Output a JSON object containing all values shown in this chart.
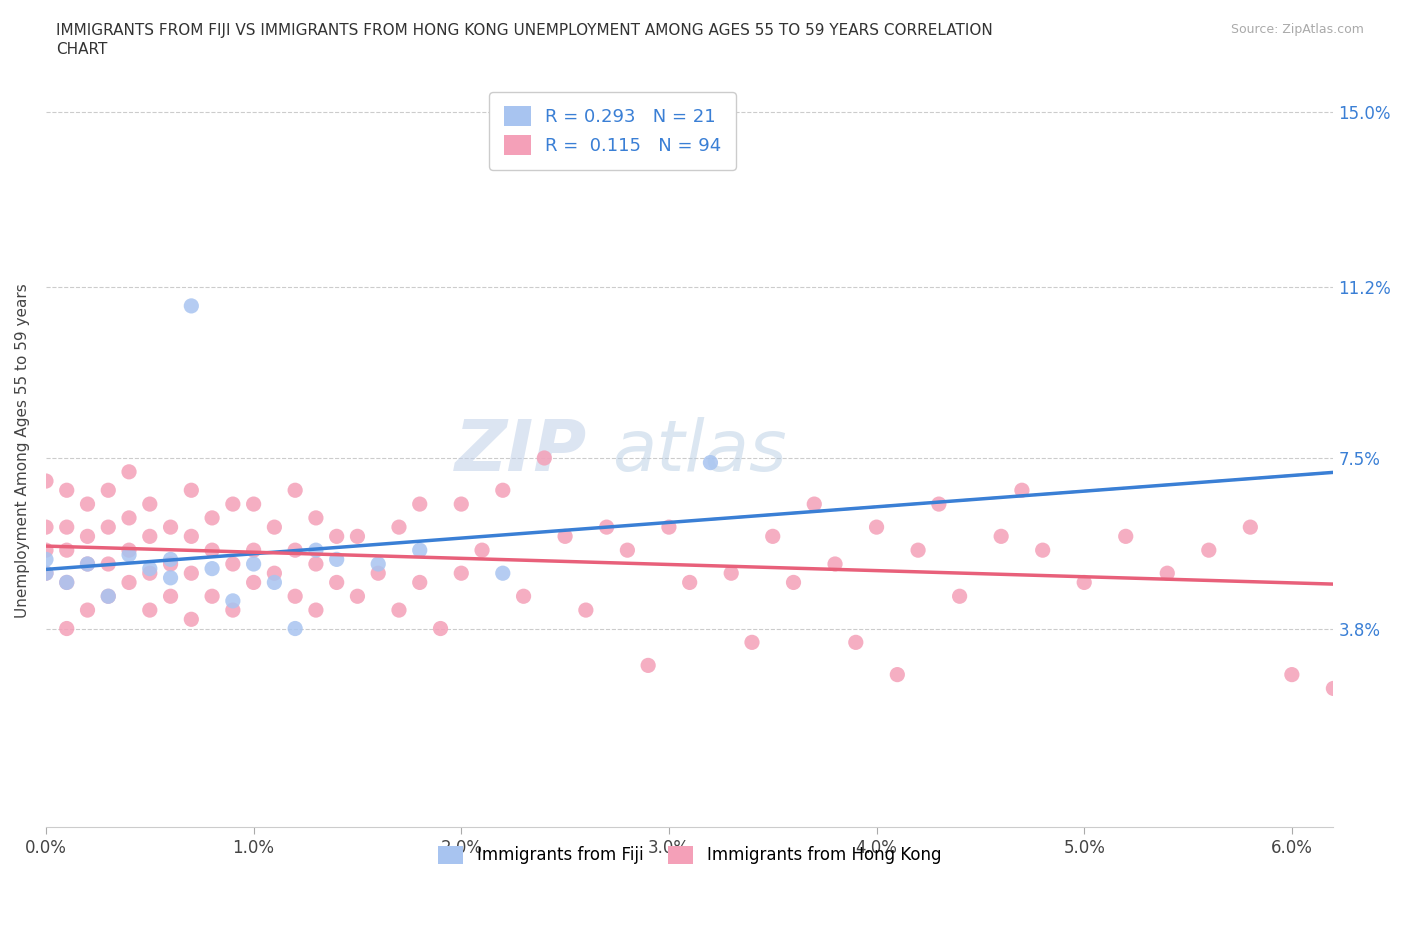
{
  "title_line1": "IMMIGRANTS FROM FIJI VS IMMIGRANTS FROM HONG KONG UNEMPLOYMENT AMONG AGES 55 TO 59 YEARS CORRELATION",
  "title_line2": "CHART",
  "source_text": "Source: ZipAtlas.com",
  "ylabel": "Unemployment Among Ages 55 to 59 years",
  "xlim": [
    0.0,
    0.062
  ],
  "ylim": [
    -0.005,
    0.158
  ],
  "xtick_vals": [
    0.0,
    0.01,
    0.02,
    0.03,
    0.04,
    0.05,
    0.06
  ],
  "xtick_labels": [
    "0.0%",
    "1.0%",
    "2.0%",
    "3.0%",
    "4.0%",
    "5.0%",
    "6.0%"
  ],
  "ytick_vals": [
    0.038,
    0.075,
    0.112,
    0.15
  ],
  "ytick_labels": [
    "3.8%",
    "7.5%",
    "11.2%",
    "15.0%"
  ],
  "fiji_color": "#a8c4f0",
  "hk_color": "#f4a0b8",
  "fiji_line_color": "#3a7fd5",
  "hk_line_color": "#e8607a",
  "fiji_R": 0.293,
  "fiji_N": 21,
  "hk_R": 0.115,
  "hk_N": 94,
  "legend_label_color": "#3a7fd5",
  "right_tick_color": "#3a7fd5",
  "fiji_scatter_x": [
    0.0,
    0.0,
    0.001,
    0.002,
    0.003,
    0.004,
    0.005,
    0.006,
    0.006,
    0.007,
    0.008,
    0.009,
    0.01,
    0.011,
    0.012,
    0.013,
    0.014,
    0.016,
    0.018,
    0.022,
    0.032
  ],
  "fiji_scatter_y": [
    0.05,
    0.053,
    0.048,
    0.052,
    0.045,
    0.054,
    0.051,
    0.049,
    0.053,
    0.108,
    0.051,
    0.044,
    0.052,
    0.048,
    0.038,
    0.055,
    0.053,
    0.052,
    0.055,
    0.05,
    0.074
  ],
  "hk_scatter_x": [
    0.0,
    0.0,
    0.0,
    0.0,
    0.001,
    0.001,
    0.001,
    0.001,
    0.001,
    0.002,
    0.002,
    0.002,
    0.002,
    0.003,
    0.003,
    0.003,
    0.003,
    0.004,
    0.004,
    0.004,
    0.004,
    0.005,
    0.005,
    0.005,
    0.005,
    0.006,
    0.006,
    0.006,
    0.007,
    0.007,
    0.007,
    0.007,
    0.008,
    0.008,
    0.008,
    0.009,
    0.009,
    0.009,
    0.01,
    0.01,
    0.01,
    0.011,
    0.011,
    0.012,
    0.012,
    0.012,
    0.013,
    0.013,
    0.013,
    0.014,
    0.014,
    0.015,
    0.015,
    0.016,
    0.017,
    0.017,
    0.018,
    0.018,
    0.019,
    0.02,
    0.02,
    0.021,
    0.022,
    0.023,
    0.024,
    0.025,
    0.026,
    0.027,
    0.028,
    0.029,
    0.03,
    0.031,
    0.033,
    0.034,
    0.035,
    0.036,
    0.037,
    0.038,
    0.039,
    0.04,
    0.041,
    0.042,
    0.043,
    0.044,
    0.046,
    0.047,
    0.048,
    0.05,
    0.052,
    0.054,
    0.056,
    0.058,
    0.06,
    0.062
  ],
  "hk_scatter_y": [
    0.05,
    0.055,
    0.06,
    0.07,
    0.038,
    0.048,
    0.055,
    0.06,
    0.068,
    0.042,
    0.052,
    0.058,
    0.065,
    0.045,
    0.052,
    0.06,
    0.068,
    0.048,
    0.055,
    0.062,
    0.072,
    0.042,
    0.05,
    0.058,
    0.065,
    0.045,
    0.052,
    0.06,
    0.04,
    0.05,
    0.058,
    0.068,
    0.045,
    0.055,
    0.062,
    0.042,
    0.052,
    0.065,
    0.048,
    0.055,
    0.065,
    0.05,
    0.06,
    0.045,
    0.055,
    0.068,
    0.042,
    0.052,
    0.062,
    0.048,
    0.058,
    0.045,
    0.058,
    0.05,
    0.042,
    0.06,
    0.048,
    0.065,
    0.038,
    0.05,
    0.065,
    0.055,
    0.068,
    0.045,
    0.075,
    0.058,
    0.042,
    0.06,
    0.055,
    0.03,
    0.06,
    0.048,
    0.05,
    0.035,
    0.058,
    0.048,
    0.065,
    0.052,
    0.035,
    0.06,
    0.028,
    0.055,
    0.065,
    0.045,
    0.058,
    0.068,
    0.055,
    0.048,
    0.058,
    0.05,
    0.055,
    0.06,
    0.028,
    0.025
  ]
}
